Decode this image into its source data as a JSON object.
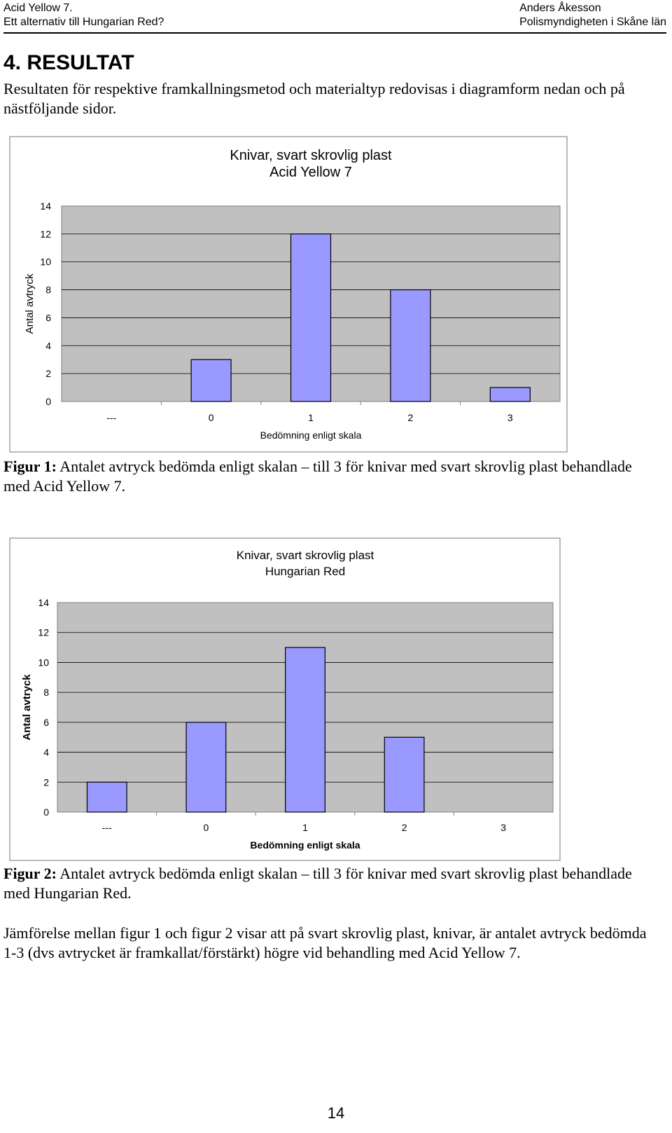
{
  "header": {
    "left_line1": "Acid Yellow 7.",
    "left_line2": "Ett alternativ till Hungarian Red?",
    "right_line1": "Anders Åkesson",
    "right_line2": "Polismyndigheten i Skåne län"
  },
  "section_title": "4. RESULTAT",
  "intro": "Resultaten för respektive framkallningsmetod och materialtyp redovisas i diagramform nedan och på nästföljande sidor.",
  "chart_data": [
    {
      "type": "bar",
      "title": "Knivar, svart skrovlig plast",
      "subtitle": "Acid Yellow 7",
      "xlabel": "Bedömning enligt skala",
      "ylabel": "Antal avtryck",
      "categories": [
        "---",
        "0",
        "1",
        "2",
        "3"
      ],
      "values": [
        0,
        3,
        12,
        8,
        1
      ],
      "ylim": [
        0,
        14
      ],
      "yticks": [
        "0",
        "2",
        "4",
        "6",
        "8",
        "10",
        "12",
        "14"
      ],
      "bar_color": "#9999ff",
      "plot_bg": "#c0c0c0"
    },
    {
      "type": "bar",
      "title": "Knivar, svart skrovlig plast",
      "subtitle": "Hungarian Red",
      "xlabel": "Bedömning enligt skala",
      "ylabel": "Antal avtryck",
      "categories": [
        "---",
        "0",
        "1",
        "2",
        "3"
      ],
      "values": [
        2,
        6,
        11,
        5,
        0
      ],
      "ylim": [
        0,
        14
      ],
      "yticks": [
        "0",
        "2",
        "4",
        "6",
        "8",
        "10",
        "12",
        "14"
      ],
      "bar_color": "#9999ff",
      "plot_bg": "#c0c0c0"
    }
  ],
  "caption1": {
    "label": "Figur 1:",
    "text": " Antalet avtryck bedömda enligt skalan – till 3 för knivar med svart skrovlig plast behandlade med Acid Yellow 7."
  },
  "caption2": {
    "label": "Figur 2:",
    "text": " Antalet avtryck bedömda enligt skalan – till 3 för knivar med svart skrovlig plast behandlade med Hungarian Red."
  },
  "conclusion": "Jämförelse mellan figur 1 och figur 2 visar att på svart skrovlig plast, knivar, är antalet avtryck bedömda 1-3 (dvs avtrycket är framkallat/förstärkt) högre vid behandling med Acid Yellow 7.",
  "page_number": "14"
}
